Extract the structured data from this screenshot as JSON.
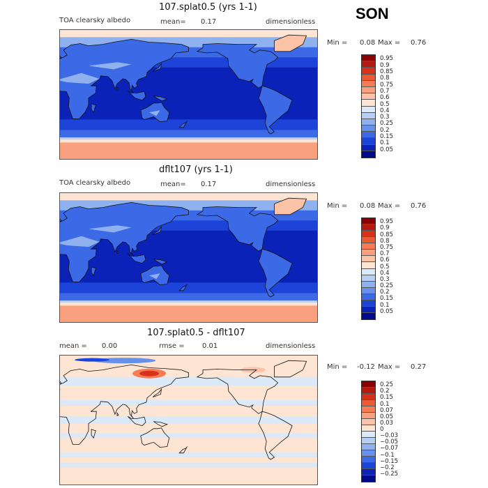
{
  "season": "SON",
  "panels": [
    {
      "title": "107.splat0.5 (yrs 1-1)",
      "left_label": "TOA clearsky albedo",
      "mean_label": "mean=",
      "mean_value": "0.17",
      "units": "dimensionless",
      "min_label": "Min =",
      "min_value": "0.08",
      "max_label": "Max =",
      "max_value": "0.76",
      "map_kind": "abs"
    },
    {
      "title": "dflt107 (yrs 1-1)",
      "left_label": "TOA clearsky albedo",
      "mean_label": "mean=",
      "mean_value": "0.17",
      "units": "dimensionless",
      "min_label": "Min =",
      "min_value": "0.08",
      "max_label": "Max =",
      "max_value": "0.76",
      "map_kind": "abs"
    },
    {
      "title": "107.splat0.5 - dflt107",
      "left_label": "mean =",
      "left_value": "0.00",
      "mid_label": "rmse =",
      "mid_value": "0.01",
      "units": "dimensionless",
      "min_label": "Min =",
      "min_value": "-0.12",
      "max_label": "Max =",
      "max_value": "0.27",
      "map_kind": "diff"
    }
  ],
  "colorbars": {
    "abs": {
      "labels": [
        "0.95",
        "0.9",
        "0.85",
        "0.8",
        "0.75",
        "0.7",
        "0.6",
        "0.5",
        "0.4",
        "0.3",
        "0.25",
        "0.2",
        "0.15",
        "0.1",
        "0.05"
      ],
      "colors": [
        "#8b0000",
        "#b41a0d",
        "#d6321a",
        "#ec5a34",
        "#f57c55",
        "#f9a07e",
        "#fcc3a6",
        "#fde4d3",
        "#dbe9f8",
        "#b7cff3",
        "#8fb2ee",
        "#6690ea",
        "#3c6ae6",
        "#1c44d8",
        "#0a22b8",
        "#000a8c"
      ]
    },
    "diff": {
      "labels": [
        "0.25",
        "0.2",
        "0.15",
        "0.1",
        "0.07",
        "0.05",
        "0.03",
        "0",
        "−0.03",
        "−0.05",
        "−0.07",
        "−0.1",
        "−0.15",
        "−0.2",
        "−0.25"
      ],
      "colors": [
        "#8b0000",
        "#b41a0d",
        "#d6321a",
        "#ec5a34",
        "#f57c55",
        "#f9a07e",
        "#fcc3a6",
        "#fde4d3",
        "#dbe9f8",
        "#b7cff3",
        "#8fb2ee",
        "#6690ea",
        "#3c6ae6",
        "#1c44d8",
        "#0a22b8",
        "#000a8c"
      ]
    }
  },
  "chart_data": [
    {
      "type": "heatmap",
      "title": "107.splat0.5 (yrs 1-1)",
      "variable": "TOA clearsky albedo",
      "units": "dimensionless",
      "mean": 0.17,
      "min": 0.08,
      "max": 0.76,
      "contour_levels": [
        0.05,
        0.1,
        0.15,
        0.2,
        0.25,
        0.3,
        0.4,
        0.5,
        0.6,
        0.7,
        0.75,
        0.8,
        0.85,
        0.9,
        0.95
      ]
    },
    {
      "type": "heatmap",
      "title": "dflt107 (yrs 1-1)",
      "variable": "TOA clearsky albedo",
      "units": "dimensionless",
      "mean": 0.17,
      "min": 0.08,
      "max": 0.76,
      "contour_levels": [
        0.05,
        0.1,
        0.15,
        0.2,
        0.25,
        0.3,
        0.4,
        0.5,
        0.6,
        0.7,
        0.75,
        0.8,
        0.85,
        0.9,
        0.95
      ]
    },
    {
      "type": "heatmap",
      "title": "107.splat0.5 - dflt107",
      "units": "dimensionless",
      "mean": 0.0,
      "rmse": 0.01,
      "min": -0.12,
      "max": 0.27,
      "contour_levels": [
        -0.25,
        -0.2,
        -0.15,
        -0.1,
        -0.07,
        -0.05,
        -0.03,
        0,
        0.03,
        0.05,
        0.07,
        0.1,
        0.15,
        0.2,
        0.25
      ]
    }
  ]
}
